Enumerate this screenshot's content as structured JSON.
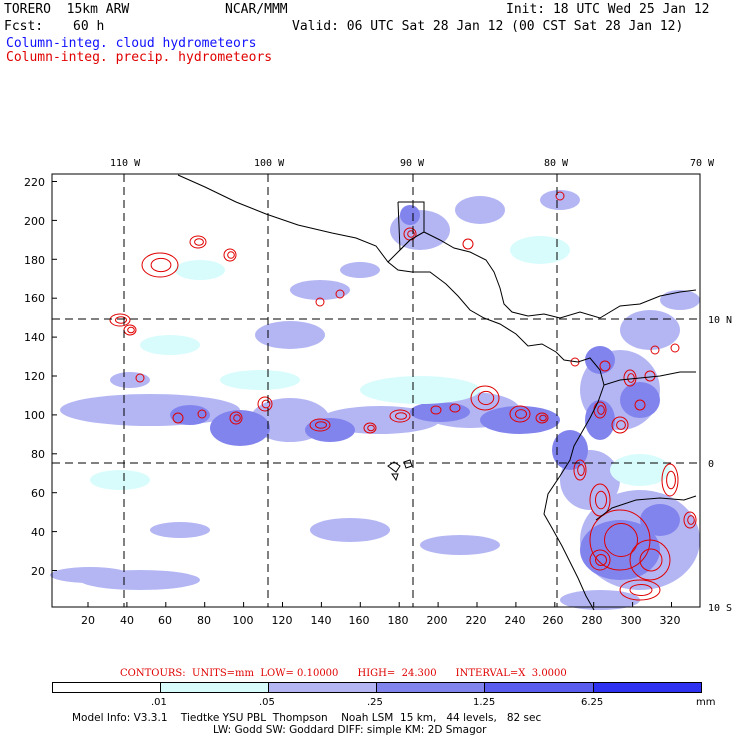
{
  "header": {
    "model": "TORERO  15km ARW",
    "org": "NCAR/MMM",
    "init": "Init: 18 UTC Wed 25 Jan 12",
    "fcst_label": "Fcst:",
    "fcst_value": "60 h",
    "valid": "Valid: 06 UTC Sat 28 Jan 12 (00 CST Sat 28 Jan 12)",
    "field1": "Column-integ. cloud hydrometeors",
    "field2": "Column-integ. precip. hydrometeors"
  },
  "colors": {
    "cloud_text": "#1010ff",
    "precip_text": "#e00000",
    "shade1": "#d8fcfc",
    "shade2": "#b4b6f4",
    "shade3": "#8284ee",
    "shade4": "#5a5cee",
    "shade5": "#2f31f0",
    "contour": "#e00000"
  },
  "map": {
    "lon_labels": [
      "110 W",
      "100 W",
      "90 W",
      "80 W",
      "70 W"
    ],
    "lat_labels": [
      "10 N",
      "0",
      "10 S"
    ],
    "y_ticks": [
      "220",
      "200",
      "180",
      "160",
      "140",
      "120",
      "100",
      "80",
      "60",
      "40",
      "20"
    ],
    "x_ticks": [
      "20",
      "40",
      "60",
      "80",
      "100",
      "120",
      "140",
      "160",
      "180",
      "200",
      "220",
      "240",
      "260",
      "280",
      "300",
      "320"
    ]
  },
  "contours_info": {
    "label": "CONTOURS:",
    "units": "UNITS=mm",
    "low": "LOW= 0.10000",
    "high": "HIGH=  24.300",
    "interval": "INTERVAL=X  3.0000"
  },
  "legend": {
    "labels": [
      ".01",
      ".05",
      ".25",
      "1.25",
      "6.25"
    ],
    "unit": "mm"
  },
  "model_info": {
    "line1": "Model Info: V3.3.1    Tiedtke YSU PBL  Thompson    Noah LSM  15 km,   44 levels,   82 sec",
    "line2": "LW: Godd SW: Goddard DIFF: simple KM: 2D Smagor"
  }
}
